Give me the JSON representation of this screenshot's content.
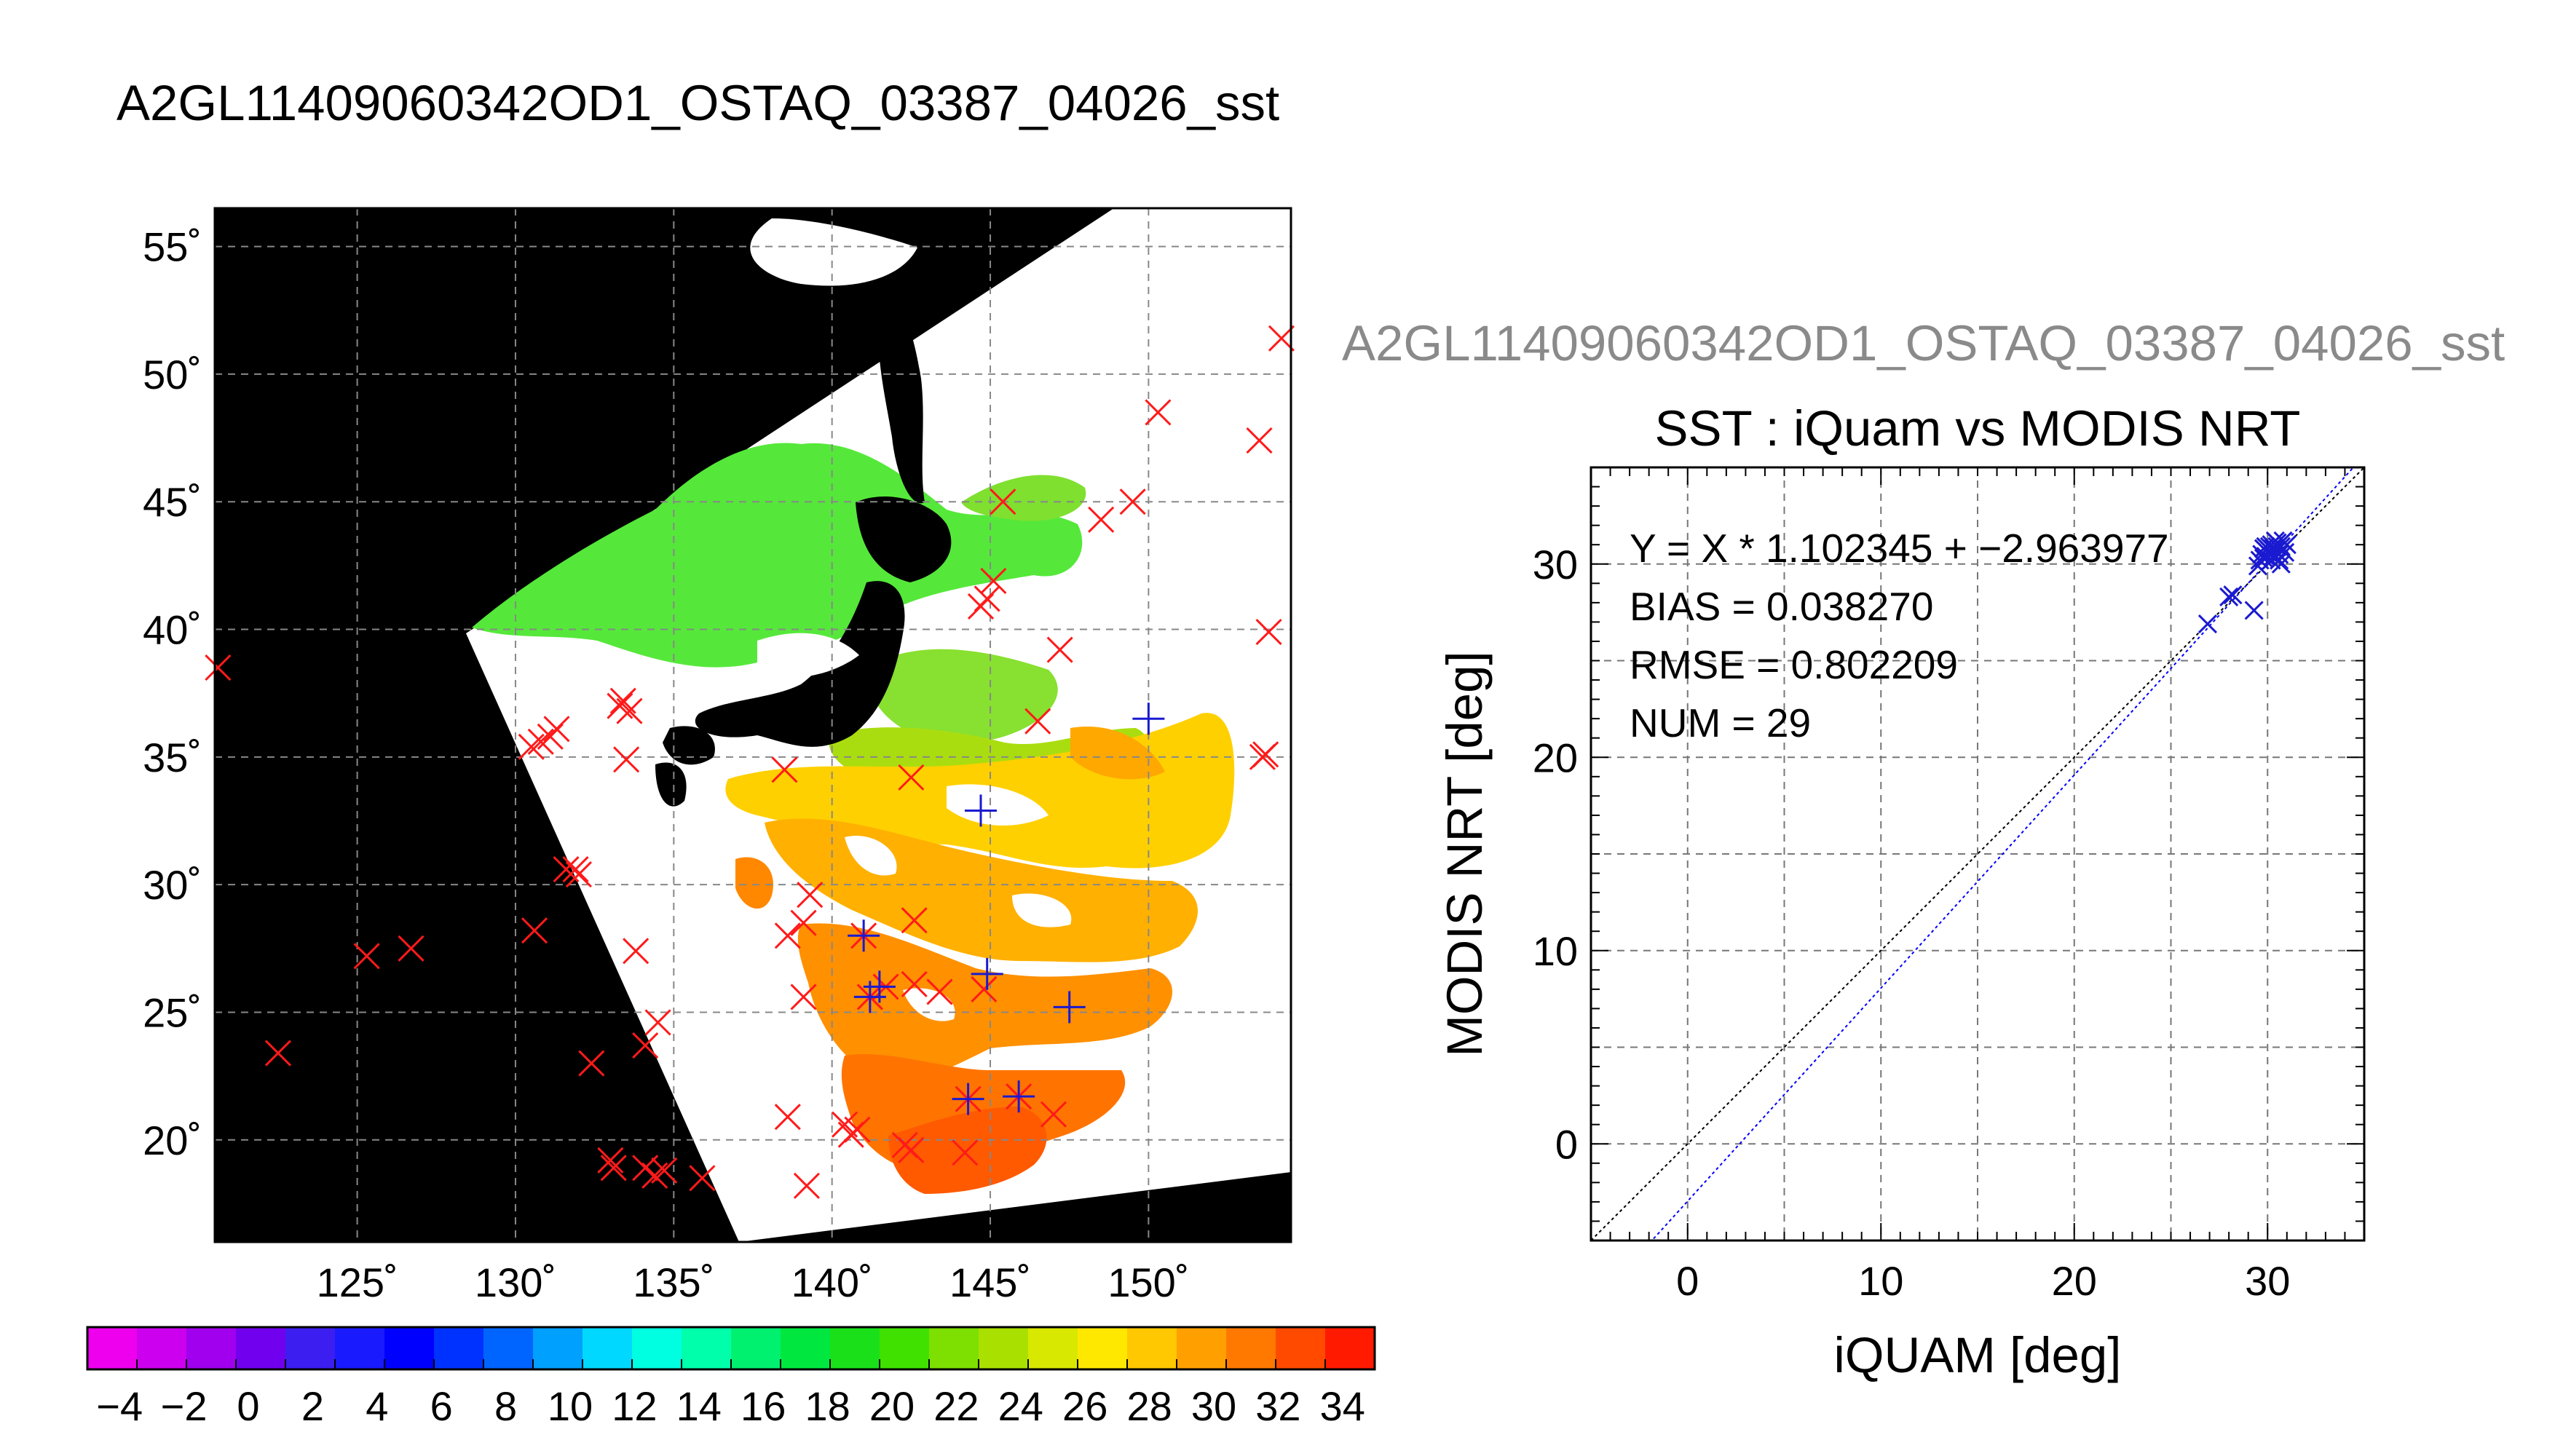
{
  "map_title": "A2GL11409060342OD1_OSTAQ_03387_04026_sst",
  "scatter_header": "A2GL11409060342OD1_OSTAQ_03387_04026_sst",
  "colors": {
    "match_in_swath": "#1a1ad0",
    "match_outside": "#ff1a1a",
    "land": "#000000",
    "cloud": "#ffffff",
    "fit_line": "#0000ff",
    "one_to_one": "#000000"
  },
  "chart_data": [
    {
      "type": "scatter",
      "subtype": "map",
      "title": "A2GL11409060342OD1_OSTAQ_03387_04026_sst",
      "xlim": [
        120.5,
        154.5
      ],
      "ylim": [
        16,
        56.5
      ],
      "x_ticks": [
        125,
        130,
        135,
        140,
        145,
        150
      ],
      "x_tick_labels": [
        "125˚",
        "130˚",
        "135˚",
        "140˚",
        "145˚",
        "150˚"
      ],
      "y_ticks": [
        20,
        25,
        30,
        35,
        40,
        45,
        50,
        55
      ],
      "y_tick_labels": [
        "20˚",
        "25˚",
        "30˚",
        "35˚",
        "40˚",
        "45˚",
        "50˚",
        "55˚"
      ],
      "grid": true,
      "series": [
        {
          "marker": "x",
          "points": [
            [
              120.6,
              38.5
            ],
            [
              154.2,
              51.4
            ],
            [
              150.3,
              48.5
            ],
            [
              153.5,
              47.4
            ],
            [
              149.5,
              45.0
            ],
            [
              148.5,
              44.3
            ],
            [
              145.4,
              45.0
            ],
            [
              145.1,
              41.9
            ],
            [
              144.9,
              41.2
            ],
            [
              144.7,
              40.9
            ],
            [
              153.8,
              39.9
            ],
            [
              147.2,
              39.2
            ],
            [
              130.5,
              35.4
            ],
            [
              130.8,
              35.6
            ],
            [
              131.1,
              35.8
            ],
            [
              131.3,
              36.1
            ],
            [
              133.3,
              37.0
            ],
            [
              133.6,
              36.8
            ],
            [
              133.4,
              37.2
            ],
            [
              133.5,
              34.9
            ],
            [
              146.5,
              36.4
            ],
            [
              153.6,
              35.0
            ],
            [
              153.7,
              35.1
            ],
            [
              138.5,
              34.5
            ],
            [
              142.5,
              34.2
            ],
            [
              131.6,
              30.6
            ],
            [
              132.0,
              30.4
            ],
            [
              131.9,
              30.6
            ],
            [
              130.6,
              28.2
            ],
            [
              133.8,
              27.4
            ],
            [
              125.3,
              27.2
            ],
            [
              126.7,
              27.5
            ],
            [
              138.6,
              28.0
            ],
            [
              139.1,
              28.5
            ],
            [
              139.3,
              29.6
            ],
            [
              142.6,
              28.6
            ],
            [
              141.0,
              28.0
            ],
            [
              139.1,
              25.6
            ],
            [
              142.6,
              26.1
            ],
            [
              143.4,
              25.8
            ],
            [
              141.2,
              25.6
            ],
            [
              141.7,
              26.0
            ],
            [
              144.8,
              25.9
            ],
            [
              134.5,
              24.6
            ],
            [
              134.1,
              23.7
            ],
            [
              132.4,
              23.0
            ],
            [
              122.5,
              23.4
            ],
            [
              138.6,
              20.9
            ],
            [
              140.4,
              20.6
            ],
            [
              140.6,
              20.2
            ],
            [
              140.8,
              20.4
            ],
            [
              142.3,
              19.8
            ],
            [
              142.5,
              19.6
            ],
            [
              144.2,
              19.5
            ],
            [
              147.0,
              21.0
            ],
            [
              133.0,
              19.2
            ],
            [
              133.1,
              18.9
            ],
            [
              134.1,
              18.9
            ],
            [
              134.4,
              18.6
            ],
            [
              134.7,
              18.8
            ],
            [
              135.9,
              18.5
            ],
            [
              139.2,
              18.2
            ],
            [
              144.3,
              21.6
            ],
            [
              145.9,
              21.7
            ]
          ]
        },
        {
          "marker": "plus",
          "points": [
            [
              150.0,
              36.5
            ],
            [
              144.7,
              32.9
            ],
            [
              141.0,
              28.0
            ],
            [
              141.5,
              26.0
            ],
            [
              141.2,
              25.6
            ],
            [
              144.9,
              26.5
            ],
            [
              147.5,
              25.2
            ],
            [
              144.3,
              21.6
            ],
            [
              145.9,
              21.7
            ]
          ]
        }
      ]
    },
    {
      "type": "scatter",
      "title": "SST : iQuam vs MODIS NRT",
      "xlabel": "iQUAM [deg]",
      "ylabel": "MODIS NRT [deg]",
      "xlim": [
        -5,
        35
      ],
      "ylim": [
        -5,
        35
      ],
      "x_ticks": [
        0,
        10,
        20,
        30
      ],
      "y_ticks": [
        0,
        10,
        20,
        30
      ],
      "grid": true,
      "annotations": [
        "Y = X * 1.102345 + −2.963977",
        "BIAS = 0.038270",
        "RMSE = 0.802209",
        "NUM = 29"
      ],
      "fit": {
        "slope": 1.102345,
        "intercept": -2.963977
      },
      "one_to_one": true,
      "points": [
        [
          26.9,
          26.9
        ],
        [
          28.0,
          28.3
        ],
        [
          28.2,
          28.4
        ],
        [
          29.3,
          27.6
        ],
        [
          29.5,
          29.9
        ],
        [
          29.6,
          30.2
        ],
        [
          29.7,
          30.5
        ],
        [
          29.8,
          30.8
        ],
        [
          29.9,
          30.4
        ],
        [
          30.0,
          30.6
        ],
        [
          30.1,
          30.9
        ],
        [
          30.2,
          31.0
        ],
        [
          30.3,
          30.4
        ],
        [
          30.4,
          30.7
        ],
        [
          30.5,
          31.1
        ],
        [
          30.6,
          30.2
        ],
        [
          30.7,
          30.9
        ],
        [
          30.8,
          31.2
        ],
        [
          30.9,
          30.6
        ],
        [
          31.0,
          31.0
        ],
        [
          30.2,
          30.2
        ],
        [
          29.9,
          30.9
        ],
        [
          30.6,
          30.5
        ],
        [
          30.4,
          31.2
        ],
        [
          29.8,
          30.3
        ],
        [
          30.7,
          30.0
        ],
        [
          30.1,
          30.7
        ],
        [
          30.5,
          30.9
        ],
        [
          30.3,
          30.8
        ]
      ]
    },
    {
      "type": "colorbar",
      "min": -5,
      "max": 35,
      "step": 2,
      "tick_labels": [
        "−4",
        "−2",
        "0",
        "2",
        "4",
        "6",
        "8",
        "10",
        "12",
        "14",
        "16",
        "18",
        "20",
        "22",
        "24",
        "26",
        "28",
        "30",
        "32",
        "34"
      ],
      "colors": [
        "#ee00ee",
        "#cc00ee",
        "#a000ee",
        "#7000ee",
        "#3c1ef0",
        "#1a1aff",
        "#0000ff",
        "#0032ff",
        "#0064ff",
        "#00a0ff",
        "#00d8ff",
        "#00ffe0",
        "#00ffaa",
        "#00f070",
        "#00e840",
        "#1ae01a",
        "#40e000",
        "#7de000",
        "#aae000",
        "#d8e800",
        "#ffe800",
        "#ffc800",
        "#ffa000",
        "#ff7800",
        "#ff4a00",
        "#ff1a00"
      ]
    }
  ]
}
